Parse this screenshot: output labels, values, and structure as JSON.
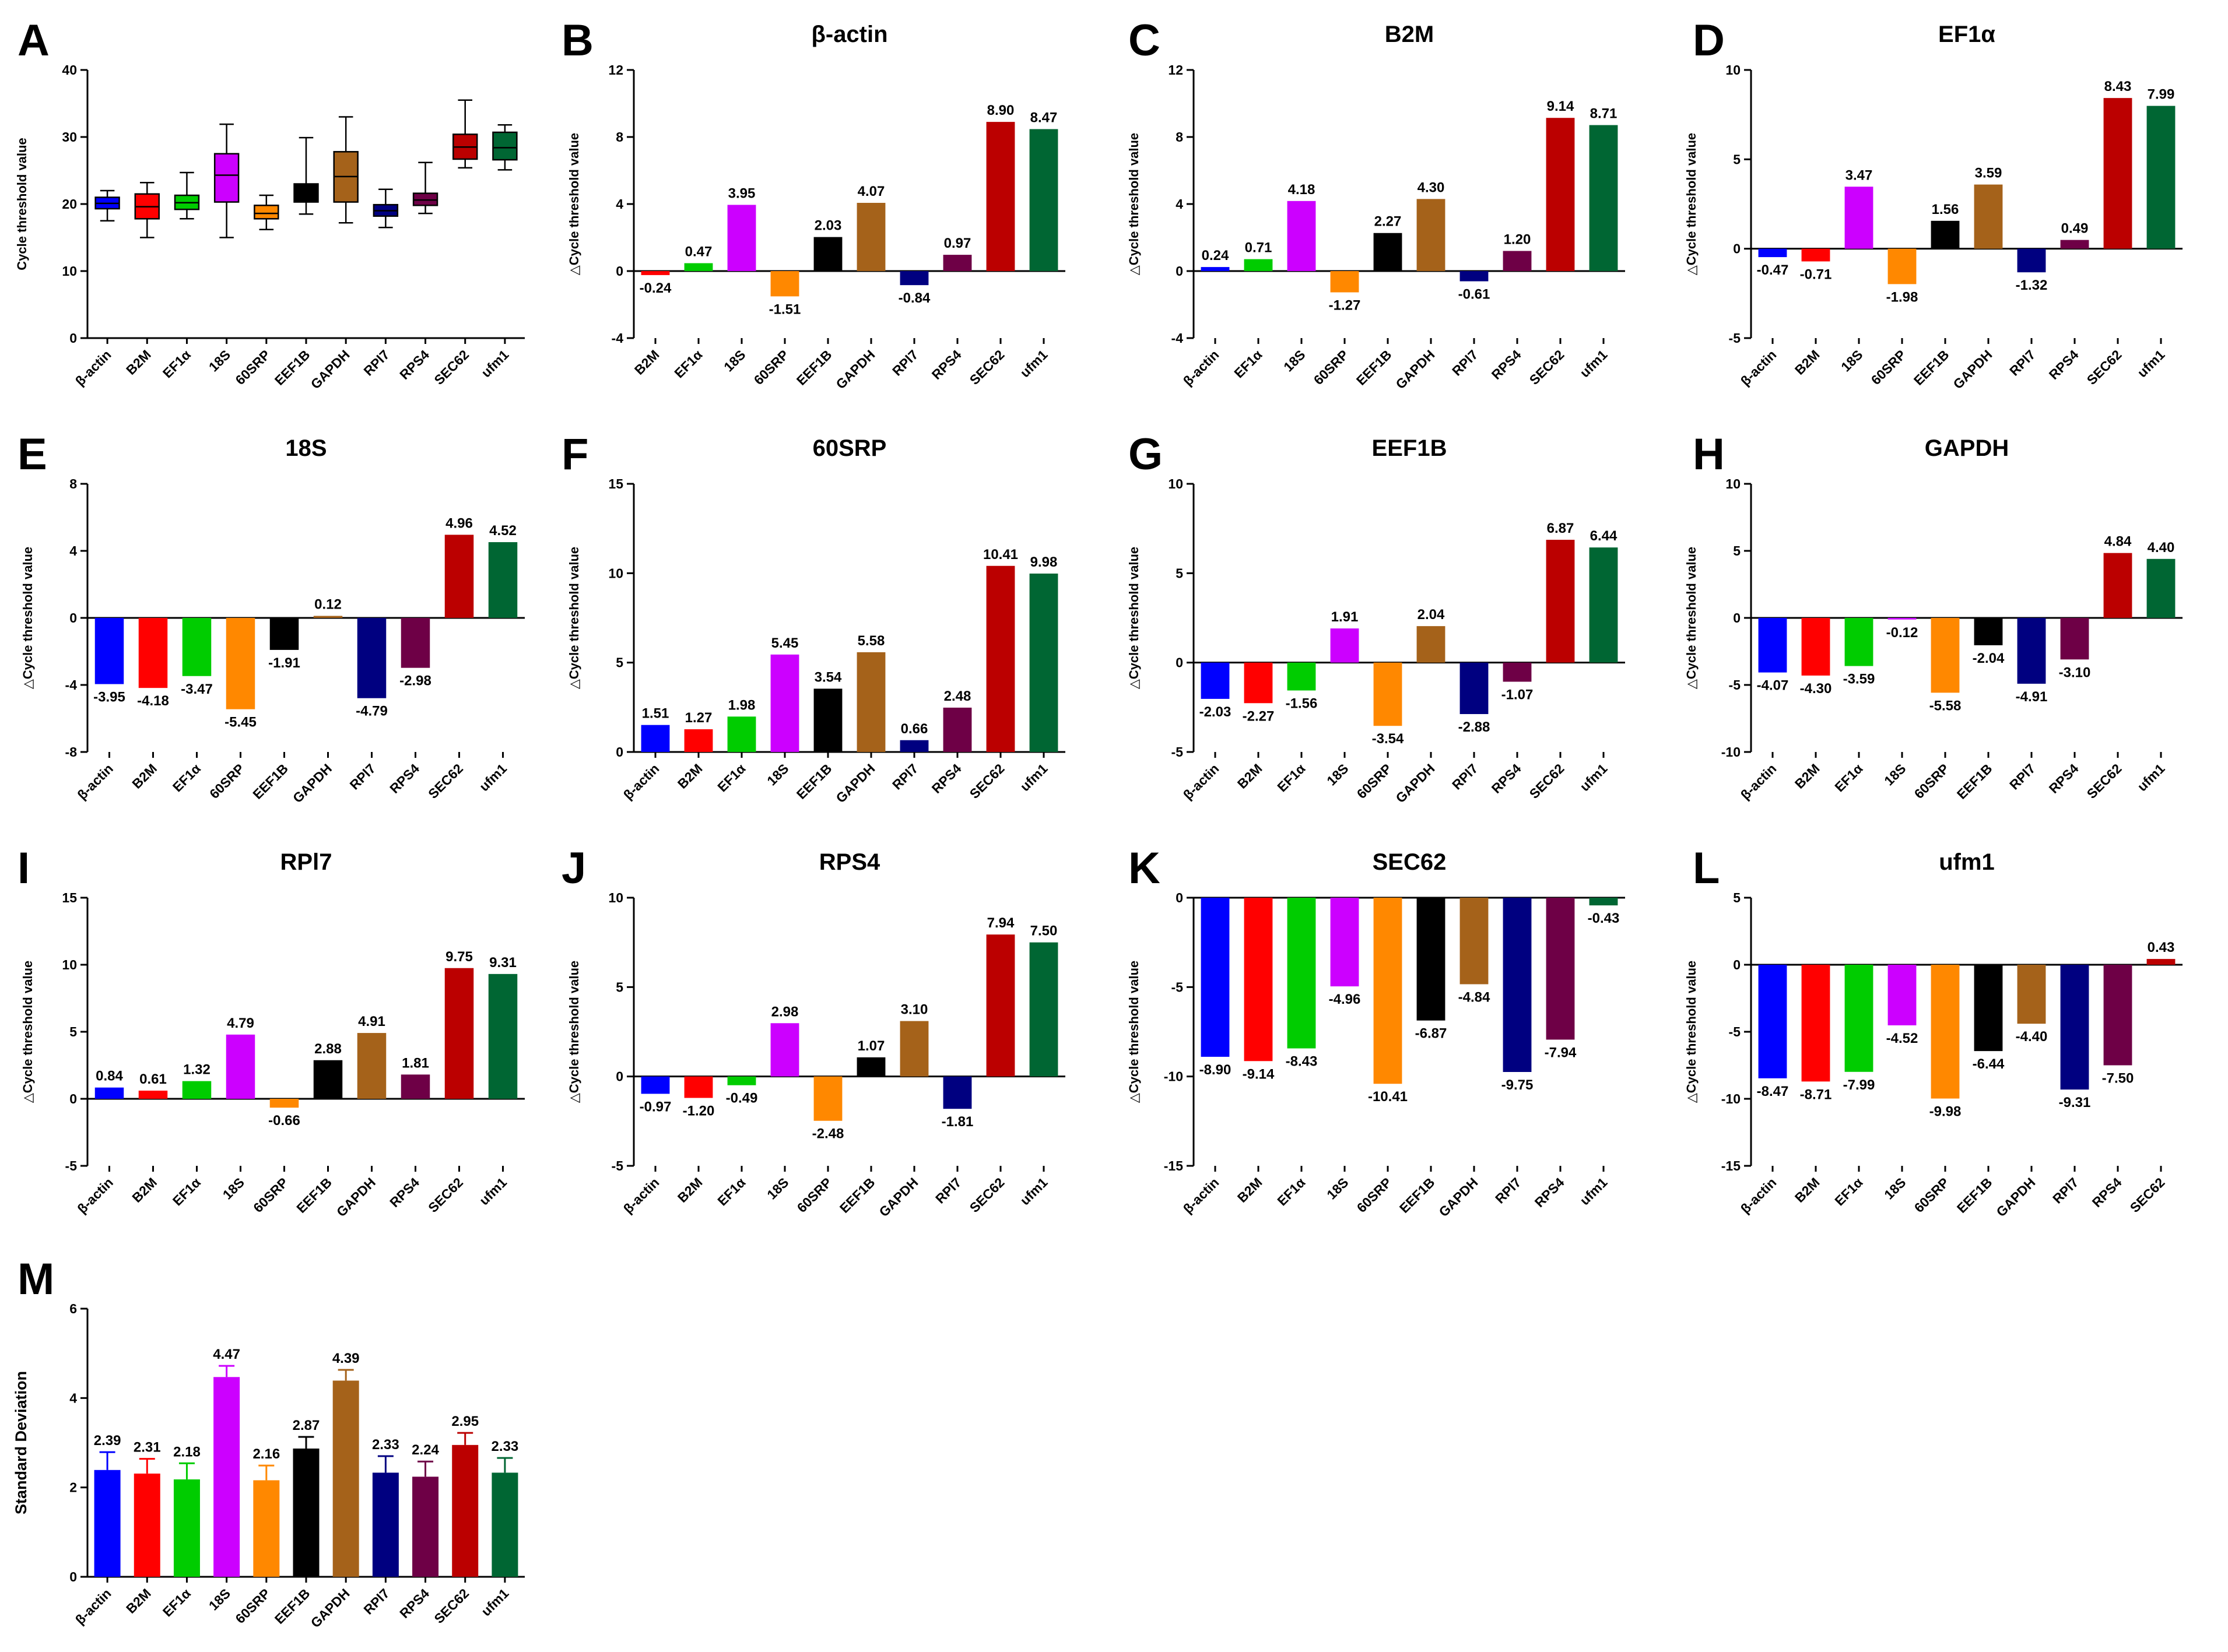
{
  "figure": {
    "ylabel_delta": "Cycle threshold value",
    "delta_symbol": "△"
  },
  "colors": {
    "β-actin": "#0000ff",
    "B2M": "#ff0000",
    "EF1α": "#00cc00",
    "18S": "#cc00ff",
    "60SRP": "#ff8800",
    "EEF1B": "#000000",
    "GAPDH": "#a5621a",
    "RPl7": "#000080",
    "RPS4": "#6e0046",
    "SEC62": "#bb0000",
    "ufm1": "#006633"
  },
  "chart_data": [
    {
      "panel": "A",
      "type": "box",
      "title": "",
      "ylabel": "Cycle threshold value",
      "ylim": [
        0,
        40
      ],
      "yticks": [
        0,
        10,
        20,
        30,
        40
      ],
      "categories": [
        "β-actin",
        "B2M",
        "EF1α",
        "18S",
        "60SRP",
        "EEF1B",
        "GAPDH",
        "RPl7",
        "RPS4",
        "SEC62",
        "ufm1"
      ],
      "boxes": [
        {
          "min": 17.5,
          "q1": 19.3,
          "median": 20.1,
          "q3": 21.0,
          "max": 22.0
        },
        {
          "min": 15.0,
          "q1": 17.8,
          "median": 19.6,
          "q3": 21.5,
          "max": 23.2
        },
        {
          "min": 17.8,
          "q1": 19.2,
          "median": 20.2,
          "q3": 21.3,
          "max": 24.7
        },
        {
          "min": 15.0,
          "q1": 20.3,
          "median": 24.3,
          "q3": 27.5,
          "max": 31.9
        },
        {
          "min": 16.2,
          "q1": 17.8,
          "median": 18.6,
          "q3": 19.8,
          "max": 21.3
        },
        {
          "min": 18.5,
          "q1": 20.3,
          "median": 21.8,
          "q3": 23.0,
          "max": 29.9
        },
        {
          "min": 17.2,
          "q1": 20.3,
          "median": 24.1,
          "q3": 27.8,
          "max": 33.0
        },
        {
          "min": 16.5,
          "q1": 18.2,
          "median": 19.0,
          "q3": 19.9,
          "max": 22.2
        },
        {
          "min": 18.6,
          "q1": 19.8,
          "median": 20.6,
          "q3": 21.6,
          "max": 26.2
        },
        {
          "min": 25.4,
          "q1": 26.7,
          "median": 28.5,
          "q3": 30.4,
          "max": 35.5
        },
        {
          "min": 25.1,
          "q1": 26.6,
          "median": 28.4,
          "q3": 30.7,
          "max": 31.8
        }
      ]
    },
    {
      "panel": "B",
      "type": "bar",
      "title": "β-actin",
      "ylim": [
        -4,
        12
      ],
      "yticks": [
        -4,
        0,
        4,
        8,
        12
      ],
      "categories": [
        "B2M",
        "EF1α",
        "18S",
        "60SRP",
        "EEF1B",
        "GAPDH",
        "RPl7",
        "RPS4",
        "SEC62",
        "ufm1"
      ],
      "labels": [
        "-0.24",
        "0.47",
        "3.95",
        "-1.51",
        "2.03",
        "4.07",
        "-0.84",
        "0.97",
        "8.90",
        "8.47"
      ]
    },
    {
      "panel": "C",
      "type": "bar",
      "title": "B2M",
      "ylim": [
        -4,
        12
      ],
      "yticks": [
        -4,
        0,
        4,
        8,
        12
      ],
      "categories": [
        "β-actin",
        "EF1α",
        "18S",
        "60SRP",
        "EEF1B",
        "GAPDH",
        "RPl7",
        "RPS4",
        "SEC62",
        "ufm1"
      ],
      "labels": [
        "0.24",
        "0.71",
        "4.18",
        "-1.27",
        "2.27",
        "4.30",
        "-0.61",
        "1.20",
        "9.14",
        "8.71"
      ]
    },
    {
      "panel": "D",
      "type": "bar",
      "title": "EF1α",
      "ylim": [
        -5,
        10
      ],
      "yticks": [
        -5,
        0,
        5,
        10
      ],
      "categories": [
        "β-actin",
        "B2M",
        "18S",
        "60SRP",
        "EEF1B",
        "GAPDH",
        "RPl7",
        "RPS4",
        "SEC62",
        "ufm1"
      ],
      "labels": [
        "-0.47",
        "-0.71",
        "3.47",
        "-1.98",
        "1.56",
        "3.59",
        "-1.32",
        "0.49",
        "8.43",
        "7.99"
      ]
    },
    {
      "panel": "E",
      "type": "bar",
      "title": "18S",
      "ylim": [
        -8,
        8
      ],
      "yticks": [
        -8,
        -4,
        0,
        4,
        8
      ],
      "categories": [
        "β-actin",
        "B2M",
        "EF1α",
        "60SRP",
        "EEF1B",
        "GAPDH",
        "RPl7",
        "RPS4",
        "SEC62",
        "ufm1"
      ],
      "labels": [
        "-3.95",
        "-4.18",
        "-3.47",
        "-5.45",
        "-1.91",
        "0.12",
        "-4.79",
        "-2.98",
        "4.96",
        "4.52"
      ]
    },
    {
      "panel": "F",
      "type": "bar",
      "title": "60SRP",
      "ylim": [
        0,
        15
      ],
      "yticks": [
        0,
        5,
        10,
        15
      ],
      "categories": [
        "β-actin",
        "B2M",
        "EF1α",
        "18S",
        "EEF1B",
        "GAPDH",
        "RPl7",
        "RPS4",
        "SEC62",
        "ufm1"
      ],
      "labels": [
        "1.51",
        "1.27",
        "1.98",
        "5.45",
        "3.54",
        "5.58",
        "0.66",
        "2.48",
        "10.41",
        "9.98"
      ]
    },
    {
      "panel": "G",
      "type": "bar",
      "title": "EEF1B",
      "ylim": [
        -5,
        10
      ],
      "yticks": [
        -5,
        0,
        5,
        10
      ],
      "categories": [
        "β-actin",
        "B2M",
        "EF1α",
        "18S",
        "60SRP",
        "GAPDH",
        "RPl7",
        "RPS4",
        "SEC62",
        "ufm1"
      ],
      "labels": [
        "-2.03",
        "-2.27",
        "-1.56",
        "1.91",
        "-3.54",
        "2.04",
        "-2.88",
        "-1.07",
        "6.87",
        "6.44"
      ]
    },
    {
      "panel": "H",
      "type": "bar",
      "title": "GAPDH",
      "ylim": [
        -10,
        10
      ],
      "yticks": [
        -10,
        -5,
        0,
        5,
        10
      ],
      "categories": [
        "β-actin",
        "B2M",
        "EF1α",
        "18S",
        "60SRP",
        "EEF1B",
        "RPl7",
        "RPS4",
        "SEC62",
        "ufm1"
      ],
      "labels": [
        "-4.07",
        "-4.30",
        "-3.59",
        "-0.12",
        "-5.58",
        "-2.04",
        "-4.91",
        "-3.10",
        "4.84",
        "4.40"
      ]
    },
    {
      "panel": "I",
      "type": "bar",
      "title": "RPl7",
      "ylim": [
        -5,
        15
      ],
      "yticks": [
        -5,
        0,
        5,
        10,
        15
      ],
      "categories": [
        "β-actin",
        "B2M",
        "EF1α",
        "18S",
        "60SRP",
        "EEF1B",
        "GAPDH",
        "RPS4",
        "SEC62",
        "ufm1"
      ],
      "labels": [
        "0.84",
        "0.61",
        "1.32",
        "4.79",
        "-0.66",
        "2.88",
        "4.91",
        "1.81",
        "9.75",
        "9.31"
      ]
    },
    {
      "panel": "J",
      "type": "bar",
      "title": "RPS4",
      "ylim": [
        -5,
        10
      ],
      "yticks": [
        -5,
        0,
        5,
        10
      ],
      "categories": [
        "β-actin",
        "B2M",
        "EF1α",
        "18S",
        "60SRP",
        "EEF1B",
        "GAPDH",
        "RPl7",
        "SEC62",
        "ufm1"
      ],
      "labels": [
        "-0.97",
        "-1.20",
        "-0.49",
        "2.98",
        "-2.48",
        "1.07",
        "3.10",
        "-1.81",
        "7.94",
        "7.50"
      ]
    },
    {
      "panel": "K",
      "type": "bar",
      "title": "SEC62",
      "ylim": [
        -15,
        0
      ],
      "yticks": [
        -15,
        -10,
        -5,
        0
      ],
      "categories": [
        "β-actin",
        "B2M",
        "EF1α",
        "18S",
        "60SRP",
        "EEF1B",
        "GAPDH",
        "RPl7",
        "RPS4",
        "ufm1"
      ],
      "labels": [
        "-8.90",
        "-9.14",
        "-8.43",
        "-4.96",
        "-10.41",
        "-6.87",
        "-4.84",
        "-9.75",
        "-7.94",
        "-0.43"
      ]
    },
    {
      "panel": "L",
      "type": "bar",
      "title": "ufm1",
      "ylim": [
        -15,
        5
      ],
      "yticks": [
        -15,
        -10,
        -5,
        0,
        5
      ],
      "categories": [
        "β-actin",
        "B2M",
        "EF1α",
        "18S",
        "60SRP",
        "EEF1B",
        "GAPDH",
        "RPl7",
        "RPS4",
        "SEC62"
      ],
      "labels": [
        "-8.47",
        "-8.71",
        "-7.99",
        "-4.52",
        "-9.98",
        "-6.44",
        "-4.40",
        "-9.31",
        "-7.50",
        "0.43"
      ]
    },
    {
      "panel": "M",
      "type": "bar",
      "title": "",
      "ylabel": "Standard Deviation",
      "ylim": [
        0,
        6
      ],
      "yticks": [
        0,
        2,
        4,
        6
      ],
      "categories": [
        "β-actin",
        "B2M",
        "EF1α",
        "18S",
        "60SRP",
        "EEF1B",
        "GAPDH",
        "RPl7",
        "RPS4",
        "SEC62",
        "ufm1"
      ],
      "labels": [
        "2.39",
        "2.31",
        "2.18",
        "4.47",
        "2.16",
        "2.87",
        "4.39",
        "2.33",
        "2.24",
        "2.95",
        "2.33"
      ],
      "errors": [
        0.4,
        0.33,
        0.36,
        0.25,
        0.33,
        0.26,
        0.24,
        0.37,
        0.34,
        0.27,
        0.33
      ]
    }
  ]
}
